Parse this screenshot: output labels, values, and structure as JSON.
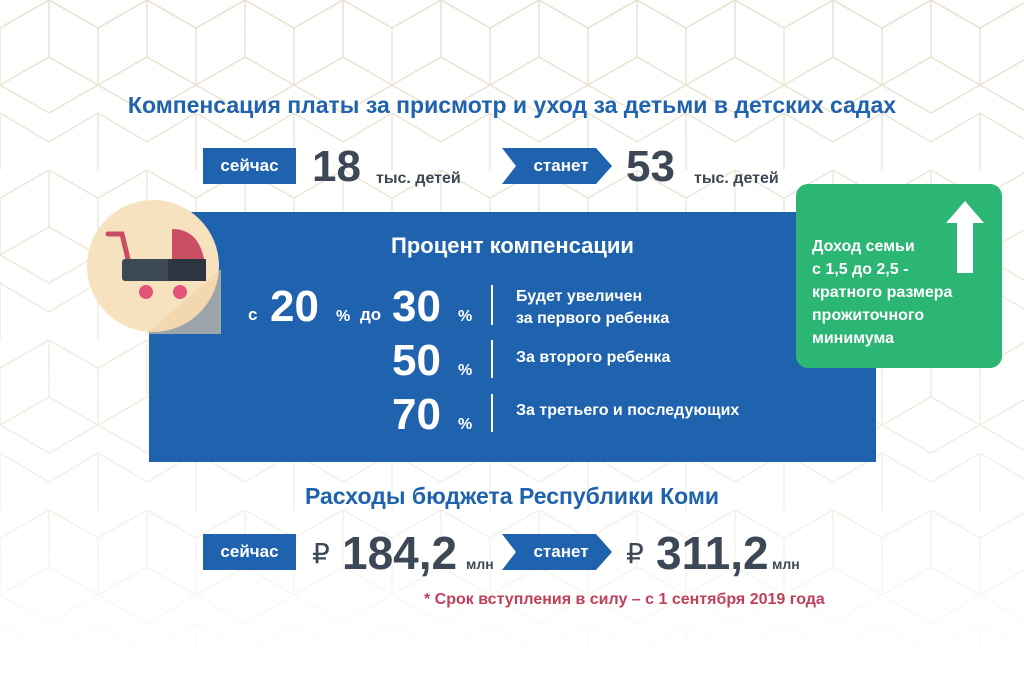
{
  "title": "Компенсация платы за присмотр и уход за детьми в детских садах",
  "children": {
    "now_label": "сейчас",
    "now_value": "18",
    "now_unit": "тыс. детей",
    "will_label": "станет",
    "will_value": "53",
    "will_unit": "тыс. детей"
  },
  "percent": {
    "title": "Процент компенсации",
    "from_prefix": "с",
    "from_value": "20",
    "pct": "%",
    "to_prefix": "до",
    "rows": [
      {
        "value": "30",
        "label_line1": "Будет увеличен",
        "label_line2": "за первого ребенка"
      },
      {
        "value": "50",
        "label_line1": "За второго ребенка",
        "label_line2": ""
      },
      {
        "value": "70",
        "label_line1": "За третьего и последующих",
        "label_line2": ""
      }
    ]
  },
  "income": {
    "lines": [
      "Доход семьи",
      "с 1,5 до 2,5 -",
      "кратного размера",
      "прожиточного",
      "минимума"
    ]
  },
  "budget": {
    "title": "Расходы бюджета Республики Коми",
    "now_label": "сейчас",
    "currency": "₽",
    "now_value": "184,2",
    "unit": "млн",
    "will_label": "станет",
    "will_value": "311,2"
  },
  "footnote": "* Срок вступления в силу – с 1 сентября 2019 года",
  "colors": {
    "blue": "#1f62ae",
    "green": "#2cb673",
    "dark_text": "#3d4856",
    "footnote": "#c0405a",
    "pattern": "#d9cfb3"
  },
  "icons": [
    "baby-stroller-icon",
    "up-arrow-icon"
  ]
}
